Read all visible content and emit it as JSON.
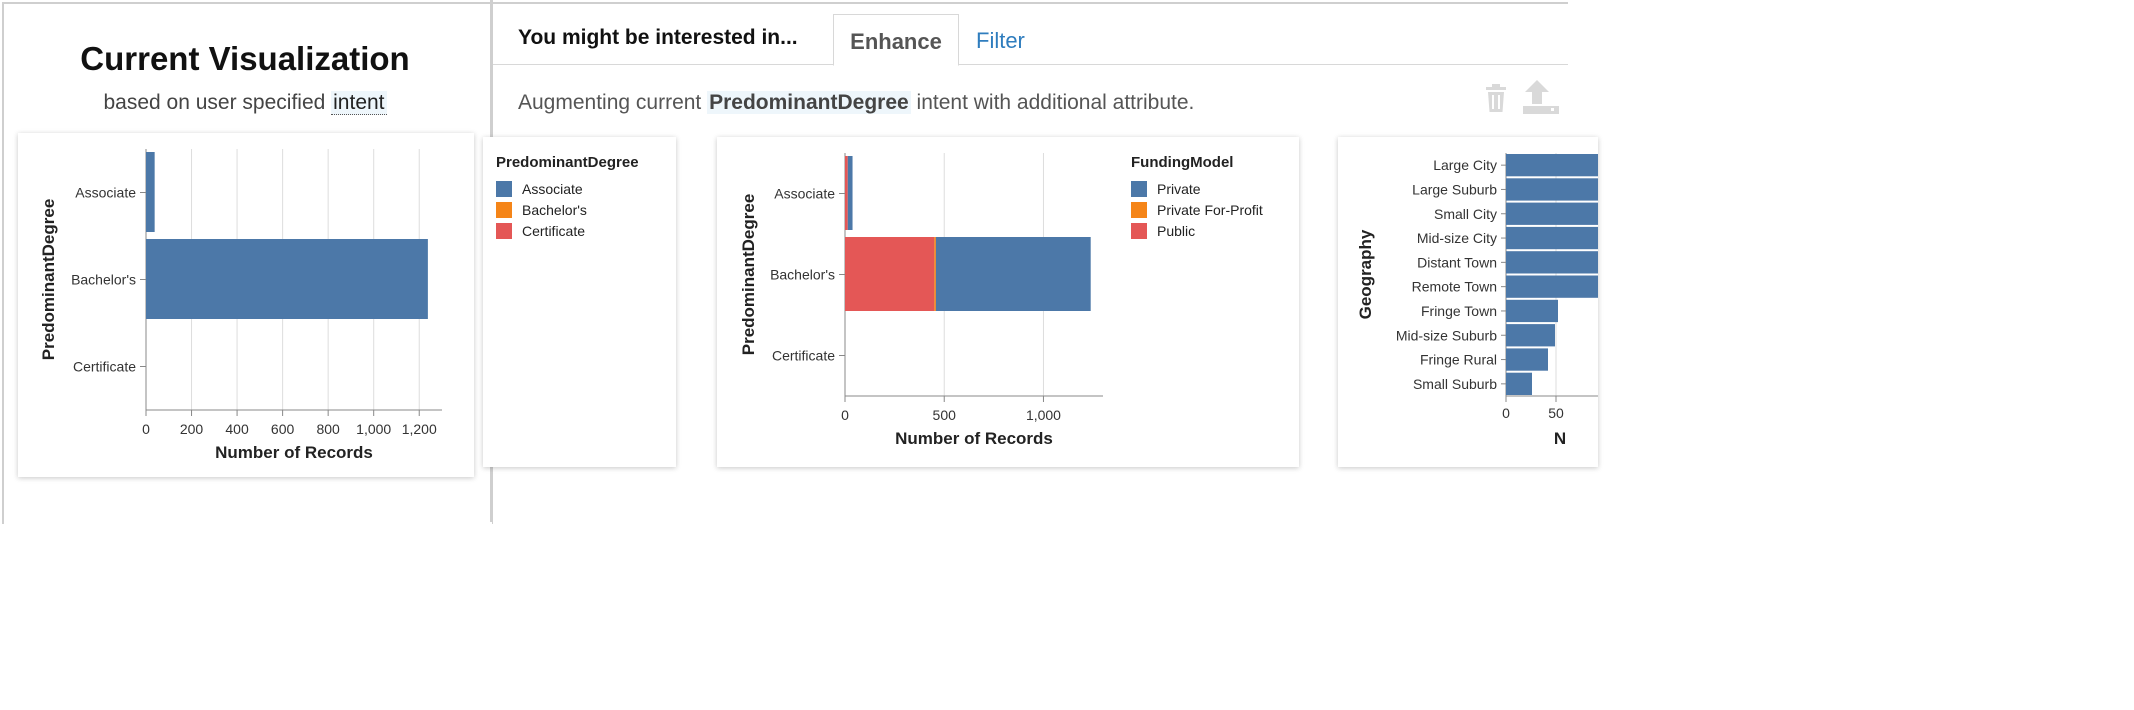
{
  "current": {
    "title": "Current Visualization",
    "subtitle_prefix": "based on user specified",
    "subtitle_highlight": "intent"
  },
  "tabs": {
    "heading": "You might be interested in...",
    "items": [
      {
        "label": "Enhance",
        "active": true
      },
      {
        "label": "Filter",
        "active": false
      }
    ]
  },
  "description": {
    "prefix": "Augmenting current",
    "highlight": "PredominantDegree",
    "suffix": "intent with additional attribute."
  },
  "toolbar": {
    "delete_icon": "trash-icon",
    "export_icon": "upload-icon"
  },
  "colors": {
    "blue": "#4c78a8",
    "orange": "#f58518",
    "red": "#e45756",
    "tab_link": "#2f7dbe"
  },
  "chart_data": [
    {
      "type": "bar",
      "orientation": "horizontal",
      "categories": [
        "Associate",
        "Bachelor's",
        "Certificate"
      ],
      "values": [
        38,
        1238,
        0
      ],
      "xlabel": "Number of Records",
      "ylabel": "PredominantDegree",
      "xlim": [
        0,
        1300
      ],
      "xticks": [
        "0",
        "200",
        "400",
        "600",
        "800",
        "1,000",
        "1,200"
      ],
      "grid": true
    },
    {
      "type": "legend",
      "legend_title": "PredominantDegree",
      "legend": [
        {
          "label": "Associate",
          "color": "#4c78a8"
        },
        {
          "label": "Bachelor's",
          "color": "#f58518"
        },
        {
          "label": "Certificate",
          "color": "#e45756"
        }
      ]
    },
    {
      "type": "bar",
      "stacked": true,
      "orientation": "horizontal",
      "categories": [
        "Associate",
        "Bachelor's",
        "Certificate"
      ],
      "series": [
        {
          "name": "Public",
          "values": [
            14,
            450,
            0
          ],
          "color": "#e45756"
        },
        {
          "name": "Private For-Profit",
          "values": [
            0,
            8,
            0
          ],
          "color": "#f58518"
        },
        {
          "name": "Private",
          "values": [
            24,
            780,
            0
          ],
          "color": "#4c78a8"
        }
      ],
      "xlabel": "Number of Records",
      "ylabel": "PredominantDegree",
      "xlim": [
        0,
        1300
      ],
      "xticks": [
        "0",
        "500",
        "1,000"
      ],
      "legend_title": "FundingModel",
      "legend": [
        {
          "label": "Private",
          "color": "#4c78a8"
        },
        {
          "label": "Private For-Profit",
          "color": "#f58518"
        },
        {
          "label": "Public",
          "color": "#e45756"
        }
      ],
      "grid": true
    },
    {
      "type": "bar",
      "orientation": "horizontal",
      "categories": [
        "Large City",
        "Large Suburb",
        "Small City",
        "Mid-size City",
        "Distant Town",
        "Remote Town",
        "Fringe Town",
        "Mid-size Suburb",
        "Fringe Rural",
        "Small Suburb"
      ],
      "values": [
        150,
        150,
        150,
        150,
        150,
        150,
        52,
        49,
        42,
        26
      ],
      "xlabel": "N",
      "ylabel": "Geography",
      "xticks": [
        "0",
        "50"
      ],
      "grid": true
    }
  ]
}
